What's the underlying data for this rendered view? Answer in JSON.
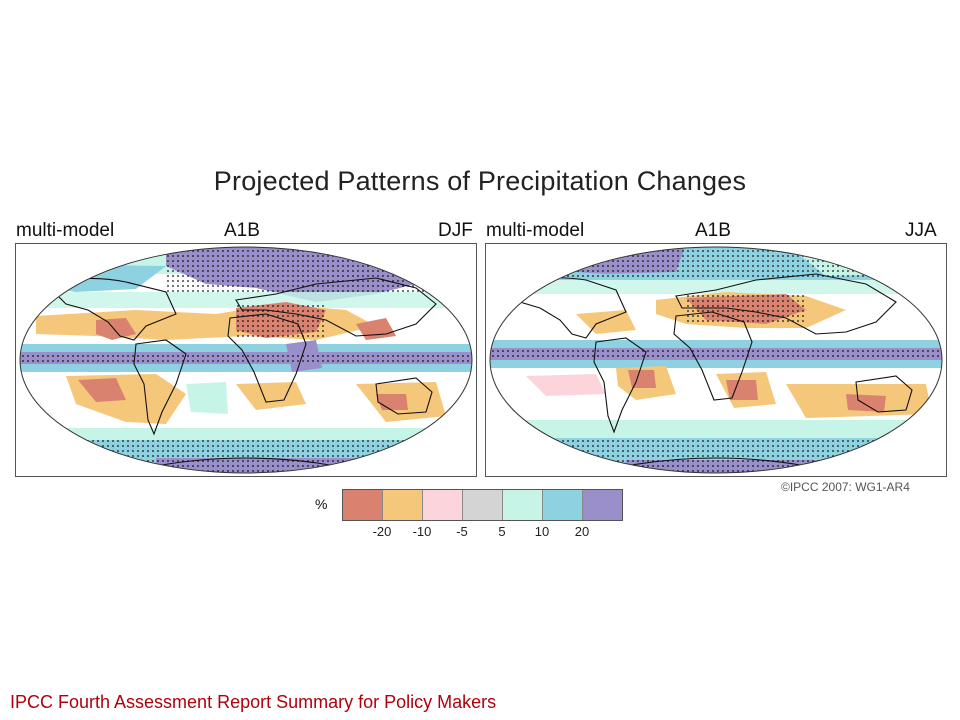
{
  "title": "Projected Patterns of Precipitation Changes",
  "panels": [
    {
      "left_label": "multi-model",
      "center_label": "A1B",
      "right_label": "DJF"
    },
    {
      "left_label": "multi-model",
      "center_label": "A1B",
      "right_label": "JJA"
    }
  ],
  "legend": {
    "unit": "%",
    "colors": [
      "#d9826f",
      "#f5c77a",
      "#fcd4dc",
      "#d4d4d4",
      "#c6f4e6",
      "#8ed2e2",
      "#9a8fca"
    ],
    "ticks": [
      "-20",
      "-10",
      "-5",
      "5",
      "10",
      "20"
    ]
  },
  "copyright": "©IPCC 2007: WG1-AR4",
  "footer": "IPCC Fourth Assessment Report Summary for Policy Makers"
}
